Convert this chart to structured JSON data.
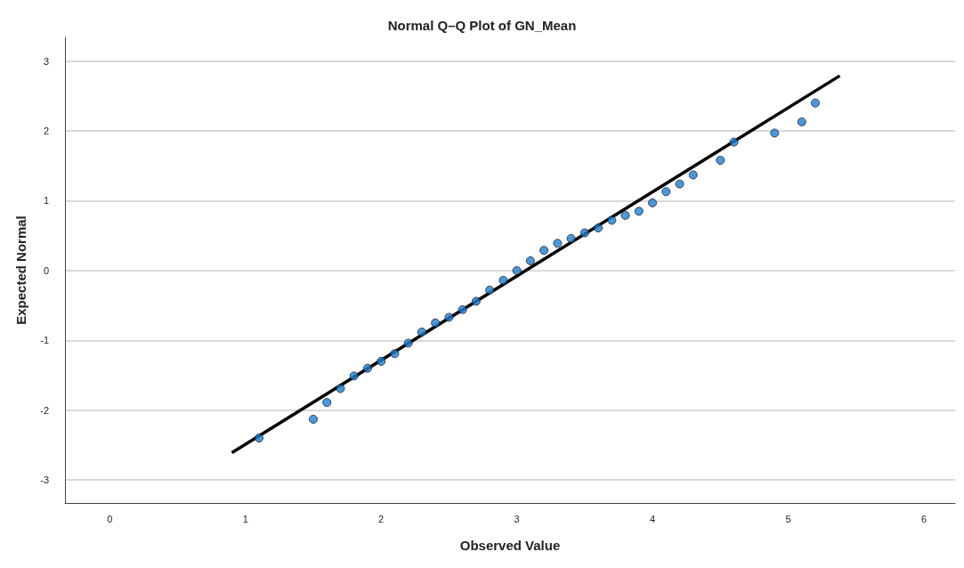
{
  "chart_data": {
    "type": "scatter",
    "title": "Normal Q–Q Plot of GN_Mean",
    "xlabel": "Observed Value",
    "ylabel": "Expected Normal",
    "xlim": [
      -0.33,
      6.23
    ],
    "ylim": [
      -3.33,
      3.34
    ],
    "xticks": [
      0,
      1,
      2,
      3,
      4,
      5,
      6
    ],
    "yticks": [
      -3,
      -2,
      -1,
      0,
      1,
      2,
      3
    ],
    "grid": "y",
    "series": [
      {
        "marker": "circle",
        "color": "#1f80d0",
        "x": [
          1.1,
          1.5,
          1.6,
          1.7,
          1.8,
          1.9,
          2.0,
          2.1,
          2.2,
          2.3,
          2.4,
          2.5,
          2.6,
          2.7,
          2.8,
          2.9,
          3.0,
          3.1,
          3.2,
          3.3,
          3.4,
          3.5,
          3.6,
          3.7,
          3.8,
          3.9,
          4.0,
          4.1,
          4.2,
          4.3,
          4.5,
          4.6,
          4.9,
          5.1,
          5.2
        ],
        "values": [
          -2.4,
          -2.13,
          -1.89,
          -1.69,
          -1.51,
          -1.4,
          -1.3,
          -1.19,
          -1.04,
          -0.88,
          -0.75,
          -0.67,
          -0.56,
          -0.44,
          -0.28,
          -0.14,
          0.0,
          0.14,
          0.29,
          0.39,
          0.46,
          0.54,
          0.61,
          0.72,
          0.79,
          0.85,
          0.97,
          1.13,
          1.24,
          1.37,
          1.58,
          1.84,
          1.97,
          2.13,
          2.4
        ]
      },
      {
        "type": "line",
        "marker": "none",
        "color": "#000000",
        "x": [
          0.9,
          5.38
        ],
        "values": [
          -2.61,
          2.79
        ]
      }
    ]
  }
}
